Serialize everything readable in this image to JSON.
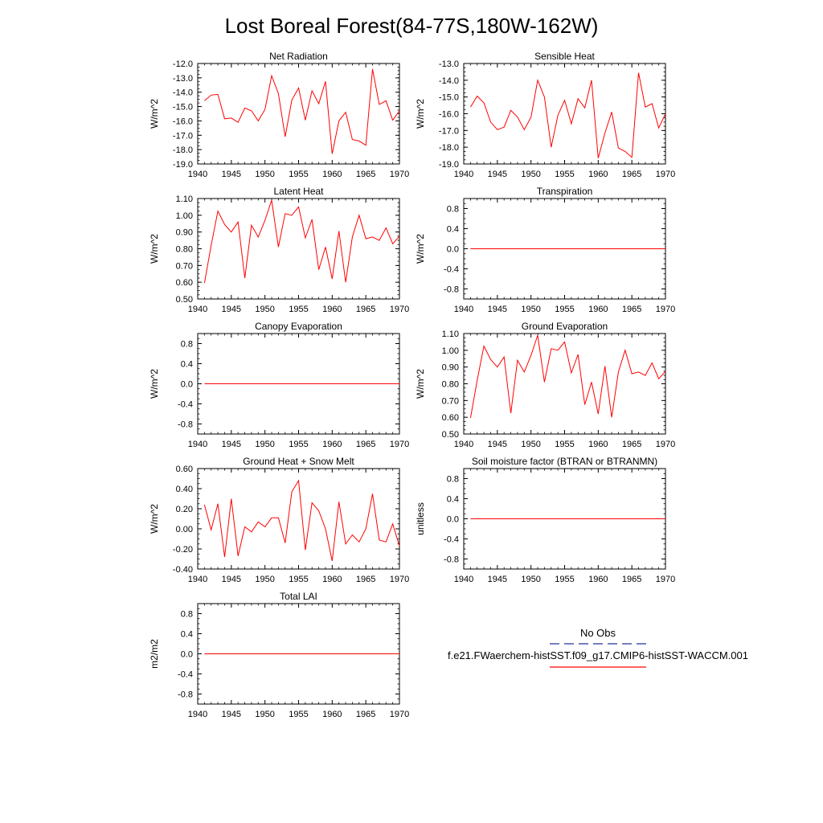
{
  "figure": {
    "title": "Lost Boreal Forest(84-77S,180W-162W)"
  },
  "legend": {
    "entries": [
      {
        "label": "No Obs",
        "color": "#223399",
        "style": "dashed"
      },
      {
        "label": "f.e21.FWaerchem-histSST.f09_g17.CMIP6-histSST-WACCM.001",
        "color": "#ff0000",
        "style": "solid"
      }
    ]
  },
  "chart_data": [
    {
      "type": "line",
      "title": "Net Radiation",
      "ylabel": "W/m^2",
      "xlim": [
        1940,
        1970
      ],
      "ylim": [
        -19.0,
        -12.0
      ],
      "xticks": [
        1940,
        1945,
        1950,
        1955,
        1960,
        1965,
        1970
      ],
      "yticks": [
        -19.0,
        -18.0,
        -17.0,
        -16.0,
        -15.0,
        -14.0,
        -13.0,
        -12.0
      ],
      "ytick_labels": [
        "-19.0",
        "-18.0",
        "-17.0",
        "-16.0",
        "-15.0",
        "-14.0",
        "-13.0",
        "-12.0"
      ],
      "x": [
        1941,
        1942,
        1943,
        1944,
        1945,
        1946,
        1947,
        1948,
        1949,
        1950,
        1951,
        1952,
        1953,
        1954,
        1955,
        1956,
        1957,
        1958,
        1959,
        1960,
        1961,
        1962,
        1963,
        1964,
        1965,
        1966,
        1967,
        1968,
        1969,
        1970
      ],
      "series": [
        {
          "color": "#ff0000",
          "values": [
            -14.6,
            -14.2,
            -14.15,
            -15.85,
            -15.8,
            -16.1,
            -15.1,
            -15.3,
            -16.0,
            -15.2,
            -12.85,
            -14.1,
            -17.1,
            -14.55,
            -13.7,
            -15.95,
            -13.9,
            -14.8,
            -13.25,
            -18.3,
            -16.0,
            -15.4,
            -17.3,
            -17.4,
            -17.7,
            -12.4,
            -14.85,
            -14.6,
            -15.95,
            -15.3
          ]
        }
      ]
    },
    {
      "type": "line",
      "title": "Sensible Heat",
      "ylabel": "W/m^2",
      "xlim": [
        1940,
        1970
      ],
      "ylim": [
        -19.0,
        -13.0
      ],
      "xticks": [
        1940,
        1945,
        1950,
        1955,
        1960,
        1965,
        1970
      ],
      "yticks": [
        -19.0,
        -18.0,
        -17.0,
        -16.0,
        -15.0,
        -14.0,
        -13.0
      ],
      "ytick_labels": [
        "-19.0",
        "-18.0",
        "-17.0",
        "-16.0",
        "-15.0",
        "-14.0",
        "-13.0"
      ],
      "x": [
        1941,
        1942,
        1943,
        1944,
        1945,
        1946,
        1947,
        1948,
        1949,
        1950,
        1951,
        1952,
        1953,
        1954,
        1955,
        1956,
        1957,
        1958,
        1959,
        1960,
        1961,
        1962,
        1963,
        1964,
        1965,
        1966,
        1967,
        1968,
        1969,
        1970
      ],
      "series": [
        {
          "color": "#ff0000",
          "values": [
            -15.6,
            -14.95,
            -15.35,
            -16.5,
            -16.95,
            -16.8,
            -15.8,
            -16.2,
            -16.95,
            -16.2,
            -14.0,
            -15.0,
            -18.0,
            -16.1,
            -15.2,
            -16.6,
            -15.1,
            -15.65,
            -14.0,
            -18.65,
            -17.15,
            -15.9,
            -18.05,
            -18.25,
            -18.6,
            -13.55,
            -15.6,
            -15.4,
            -16.85,
            -16.0
          ]
        }
      ]
    },
    {
      "type": "line",
      "title": "Latent Heat",
      "ylabel": "W/m^2",
      "xlim": [
        1940,
        1970
      ],
      "ylim": [
        0.5,
        1.1
      ],
      "xticks": [
        1940,
        1945,
        1950,
        1955,
        1960,
        1965,
        1970
      ],
      "yticks": [
        0.5,
        0.6,
        0.7,
        0.8,
        0.9,
        1.0,
        1.1
      ],
      "ytick_labels": [
        "0.50",
        "0.60",
        "0.70",
        "0.80",
        "0.90",
        "1.00",
        "1.10"
      ],
      "x": [
        1941,
        1942,
        1943,
        1944,
        1945,
        1946,
        1947,
        1948,
        1949,
        1950,
        1951,
        1952,
        1953,
        1954,
        1955,
        1956,
        1957,
        1958,
        1959,
        1960,
        1961,
        1962,
        1963,
        1964,
        1965,
        1966,
        1967,
        1968,
        1969,
        1970
      ],
      "series": [
        {
          "color": "#ff0000",
          "values": [
            0.595,
            0.82,
            1.025,
            0.945,
            0.9,
            0.96,
            0.625,
            0.94,
            0.87,
            0.97,
            1.09,
            0.81,
            1.01,
            1.0,
            1.05,
            0.865,
            0.975,
            0.675,
            0.81,
            0.62,
            0.905,
            0.6,
            0.87,
            1.0,
            0.86,
            0.87,
            0.85,
            0.925,
            0.83,
            0.875
          ]
        }
      ]
    },
    {
      "type": "line",
      "title": "Transpiration",
      "ylabel": "W/m^2",
      "xlim": [
        1940,
        1970
      ],
      "ylim": [
        -1.0,
        1.0
      ],
      "xticks": [
        1940,
        1945,
        1950,
        1955,
        1960,
        1965,
        1970
      ],
      "yticks": [
        -0.8,
        -0.4,
        0.0,
        0.4,
        0.8
      ],
      "ytick_labels": [
        "-0.8",
        "-0.4",
        "0.0",
        "0.4",
        "0.8"
      ],
      "x": [
        1941,
        1970
      ],
      "series": [
        {
          "color": "#ff0000",
          "values": [
            0.0,
            0.0
          ]
        }
      ]
    },
    {
      "type": "line",
      "title": "Canopy Evaporation",
      "ylabel": "W/m^2",
      "xlim": [
        1940,
        1970
      ],
      "ylim": [
        -1.0,
        1.0
      ],
      "xticks": [
        1940,
        1945,
        1950,
        1955,
        1960,
        1965,
        1970
      ],
      "yticks": [
        -0.8,
        -0.4,
        0.0,
        0.4,
        0.8
      ],
      "ytick_labels": [
        "-0.8",
        "-0.4",
        "0.0",
        "0.4",
        "0.8"
      ],
      "x": [
        1941,
        1970
      ],
      "series": [
        {
          "color": "#ff0000",
          "values": [
            0.0,
            0.0
          ]
        }
      ]
    },
    {
      "type": "line",
      "title": "Ground Evaporation",
      "ylabel": "W/m^2",
      "xlim": [
        1940,
        1970
      ],
      "ylim": [
        0.5,
        1.1
      ],
      "xticks": [
        1940,
        1945,
        1950,
        1955,
        1960,
        1965,
        1970
      ],
      "yticks": [
        0.5,
        0.6,
        0.7,
        0.8,
        0.9,
        1.0,
        1.1
      ],
      "ytick_labels": [
        "0.50",
        "0.60",
        "0.70",
        "0.80",
        "0.90",
        "1.00",
        "1.10"
      ],
      "x": [
        1941,
        1942,
        1943,
        1944,
        1945,
        1946,
        1947,
        1948,
        1949,
        1950,
        1951,
        1952,
        1953,
        1954,
        1955,
        1956,
        1957,
        1958,
        1959,
        1960,
        1961,
        1962,
        1963,
        1964,
        1965,
        1966,
        1967,
        1968,
        1969,
        1970
      ],
      "series": [
        {
          "color": "#ff0000",
          "values": [
            0.595,
            0.82,
            1.025,
            0.945,
            0.9,
            0.96,
            0.625,
            0.94,
            0.87,
            0.97,
            1.09,
            0.81,
            1.01,
            1.0,
            1.05,
            0.865,
            0.975,
            0.675,
            0.81,
            0.62,
            0.905,
            0.6,
            0.87,
            1.0,
            0.86,
            0.87,
            0.85,
            0.925,
            0.83,
            0.875
          ]
        }
      ]
    },
    {
      "type": "line",
      "title": "Ground Heat + Snow Melt",
      "ylabel": "W/m^2",
      "xlim": [
        1940,
        1970
      ],
      "ylim": [
        -0.4,
        0.6
      ],
      "xticks": [
        1940,
        1945,
        1950,
        1955,
        1960,
        1965,
        1970
      ],
      "yticks": [
        -0.4,
        -0.2,
        0.0,
        0.2,
        0.4,
        0.6
      ],
      "ytick_labels": [
        "-0.40",
        "-0.20",
        "0.00",
        "0.20",
        "0.40",
        "0.60"
      ],
      "x": [
        1941,
        1942,
        1943,
        1944,
        1945,
        1946,
        1947,
        1948,
        1949,
        1950,
        1951,
        1952,
        1953,
        1954,
        1955,
        1956,
        1957,
        1958,
        1959,
        1960,
        1961,
        1962,
        1963,
        1964,
        1965,
        1966,
        1967,
        1968,
        1969,
        1970
      ],
      "series": [
        {
          "color": "#ff0000",
          "values": [
            0.24,
            -0.01,
            0.25,
            -0.28,
            0.3,
            -0.27,
            0.02,
            -0.03,
            0.07,
            0.02,
            0.11,
            0.11,
            -0.14,
            0.37,
            0.48,
            -0.21,
            0.26,
            0.18,
            0.0,
            -0.32,
            0.27,
            -0.15,
            -0.06,
            -0.13,
            0.0,
            0.35,
            -0.11,
            -0.13,
            0.05,
            -0.17
          ]
        }
      ]
    },
    {
      "type": "line",
      "title": "Soil moisture factor (BTRAN or BTRANMN)",
      "ylabel": "unitless",
      "xlim": [
        1940,
        1970
      ],
      "ylim": [
        -1.0,
        1.0
      ],
      "xticks": [
        1940,
        1945,
        1950,
        1955,
        1960,
        1965,
        1970
      ],
      "yticks": [
        -0.8,
        -0.4,
        0.0,
        0.4,
        0.8
      ],
      "ytick_labels": [
        "-0.8",
        "-0.4",
        "0.0",
        "0.4",
        "0.8"
      ],
      "x": [
        1941,
        1970
      ],
      "series": [
        {
          "color": "#ff0000",
          "values": [
            0.0,
            0.0
          ]
        }
      ]
    },
    {
      "type": "line",
      "title": "Total LAI",
      "ylabel": "m2/m2",
      "xlim": [
        1940,
        1970
      ],
      "ylim": [
        -1.0,
        1.0
      ],
      "xticks": [
        1940,
        1945,
        1950,
        1955,
        1960,
        1965,
        1970
      ],
      "yticks": [
        -0.8,
        -0.4,
        0.0,
        0.4,
        0.8
      ],
      "ytick_labels": [
        "-0.8",
        "-0.4",
        "0.0",
        "0.4",
        "0.8"
      ],
      "x": [
        1941,
        1970
      ],
      "series": [
        {
          "color": "#ff0000",
          "values": [
            0.0,
            0.0
          ]
        }
      ]
    }
  ]
}
